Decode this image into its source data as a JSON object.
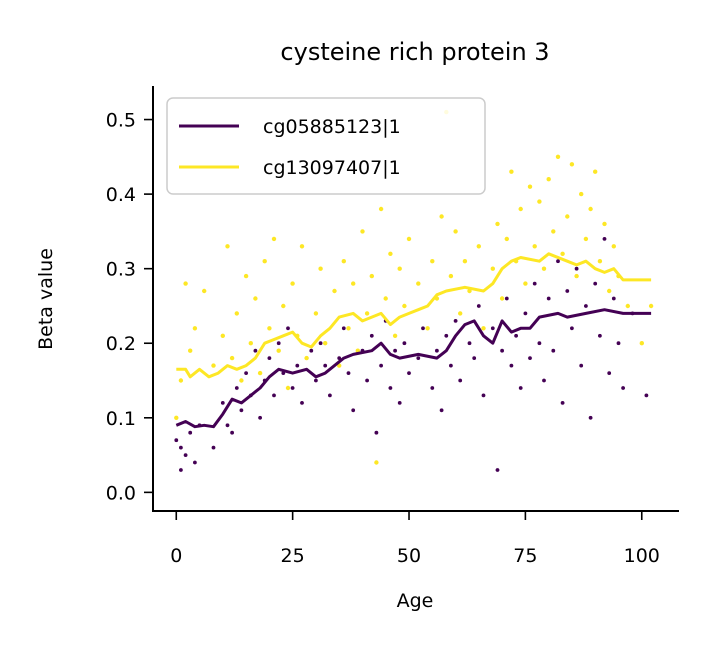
{
  "chart_data": {
    "type": "scatter",
    "title": "cysteine rich protein 3",
    "xlabel": "Age",
    "ylabel": "Beta value",
    "xlim": [
      -5,
      108
    ],
    "ylim": [
      -0.025,
      0.545
    ],
    "xticks": [
      0,
      25,
      50,
      75,
      100
    ],
    "yticks": [
      0.0,
      0.1,
      0.2,
      0.3,
      0.4,
      0.5
    ],
    "xtick_labels": [
      "0",
      "25",
      "50",
      "75",
      "100"
    ],
    "ytick_labels": [
      "0.0",
      "0.1",
      "0.2",
      "0.3",
      "0.4",
      "0.5"
    ],
    "grid": false,
    "legend_position": "top-left",
    "series": [
      {
        "name": "cg05885123|1",
        "color": "#440154",
        "trend": [
          [
            0,
            0.09
          ],
          [
            2,
            0.095
          ],
          [
            4,
            0.088
          ],
          [
            6,
            0.09
          ],
          [
            8,
            0.088
          ],
          [
            10,
            0.105
          ],
          [
            12,
            0.125
          ],
          [
            14,
            0.12
          ],
          [
            16,
            0.13
          ],
          [
            18,
            0.14
          ],
          [
            20,
            0.155
          ],
          [
            22,
            0.165
          ],
          [
            25,
            0.16
          ],
          [
            28,
            0.165
          ],
          [
            30,
            0.155
          ],
          [
            32,
            0.16
          ],
          [
            34,
            0.17
          ],
          [
            36,
            0.18
          ],
          [
            38,
            0.185
          ],
          [
            42,
            0.19
          ],
          [
            44,
            0.2
          ],
          [
            46,
            0.185
          ],
          [
            48,
            0.18
          ],
          [
            52,
            0.185
          ],
          [
            56,
            0.18
          ],
          [
            58,
            0.19
          ],
          [
            60,
            0.21
          ],
          [
            62,
            0.225
          ],
          [
            64,
            0.23
          ],
          [
            66,
            0.21
          ],
          [
            68,
            0.2
          ],
          [
            70,
            0.23
          ],
          [
            72,
            0.215
          ],
          [
            74,
            0.22
          ],
          [
            76,
            0.22
          ],
          [
            78,
            0.235
          ],
          [
            82,
            0.24
          ],
          [
            84,
            0.235
          ],
          [
            88,
            0.24
          ],
          [
            92,
            0.245
          ],
          [
            96,
            0.24
          ],
          [
            102,
            0.24
          ]
        ],
        "points": [
          [
            0,
            0.07
          ],
          [
            1,
            0.03
          ],
          [
            1,
            0.06
          ],
          [
            2,
            0.05
          ],
          [
            3,
            0.08
          ],
          [
            4,
            0.04
          ],
          [
            5,
            0.09
          ],
          [
            8,
            0.06
          ],
          [
            10,
            0.12
          ],
          [
            11,
            0.09
          ],
          [
            12,
            0.08
          ],
          [
            13,
            0.14
          ],
          [
            14,
            0.11
          ],
          [
            15,
            0.16
          ],
          [
            16,
            0.13
          ],
          [
            17,
            0.19
          ],
          [
            18,
            0.1
          ],
          [
            19,
            0.15
          ],
          [
            20,
            0.18
          ],
          [
            21,
            0.13
          ],
          [
            22,
            0.2
          ],
          [
            23,
            0.16
          ],
          [
            24,
            0.22
          ],
          [
            25,
            0.14
          ],
          [
            26,
            0.17
          ],
          [
            27,
            0.12
          ],
          [
            29,
            0.19
          ],
          [
            30,
            0.15
          ],
          [
            31,
            0.2
          ],
          [
            32,
            0.17
          ],
          [
            33,
            0.13
          ],
          [
            35,
            0.18
          ],
          [
            36,
            0.22
          ],
          [
            37,
            0.16
          ],
          [
            38,
            0.11
          ],
          [
            40,
            0.19
          ],
          [
            41,
            0.15
          ],
          [
            42,
            0.21
          ],
          [
            43,
            0.08
          ],
          [
            44,
            0.17
          ],
          [
            45,
            0.23
          ],
          [
            46,
            0.14
          ],
          [
            47,
            0.19
          ],
          [
            48,
            0.12
          ],
          [
            49,
            0.2
          ],
          [
            50,
            0.16
          ],
          [
            52,
            0.18
          ],
          [
            53,
            0.22
          ],
          [
            55,
            0.14
          ],
          [
            56,
            0.19
          ],
          [
            57,
            0.11
          ],
          [
            58,
            0.21
          ],
          [
            59,
            0.17
          ],
          [
            60,
            0.23
          ],
          [
            61,
            0.15
          ],
          [
            63,
            0.2
          ],
          [
            64,
            0.18
          ],
          [
            65,
            0.25
          ],
          [
            66,
            0.13
          ],
          [
            68,
            0.22
          ],
          [
            69,
            0.03
          ],
          [
            70,
            0.19
          ],
          [
            71,
            0.26
          ],
          [
            72,
            0.17
          ],
          [
            73,
            0.21
          ],
          [
            74,
            0.14
          ],
          [
            75,
            0.24
          ],
          [
            76,
            0.18
          ],
          [
            77,
            0.28
          ],
          [
            78,
            0.2
          ],
          [
            79,
            0.15
          ],
          [
            80,
            0.26
          ],
          [
            81,
            0.19
          ],
          [
            82,
            0.31
          ],
          [
            83,
            0.12
          ],
          [
            84,
            0.27
          ],
          [
            85,
            0.22
          ],
          [
            86,
            0.3
          ],
          [
            87,
            0.17
          ],
          [
            88,
            0.25
          ],
          [
            89,
            0.1
          ],
          [
            90,
            0.28
          ],
          [
            91,
            0.21
          ],
          [
            92,
            0.34
          ],
          [
            93,
            0.16
          ],
          [
            94,
            0.26
          ],
          [
            95,
            0.2
          ],
          [
            96,
            0.14
          ],
          [
            98,
            0.24
          ],
          [
            101,
            0.13
          ]
        ]
      },
      {
        "name": "cg13097407|1",
        "color": "#fde725",
        "trend": [
          [
            0,
            0.165
          ],
          [
            2,
            0.165
          ],
          [
            3,
            0.155
          ],
          [
            5,
            0.165
          ],
          [
            7,
            0.155
          ],
          [
            9,
            0.16
          ],
          [
            11,
            0.17
          ],
          [
            13,
            0.165
          ],
          [
            15,
            0.17
          ],
          [
            17,
            0.18
          ],
          [
            19,
            0.2
          ],
          [
            21,
            0.205
          ],
          [
            23,
            0.21
          ],
          [
            25,
            0.215
          ],
          [
            27,
            0.2
          ],
          [
            29,
            0.195
          ],
          [
            31,
            0.21
          ],
          [
            33,
            0.22
          ],
          [
            35,
            0.235
          ],
          [
            38,
            0.24
          ],
          [
            40,
            0.23
          ],
          [
            42,
            0.235
          ],
          [
            44,
            0.24
          ],
          [
            46,
            0.225
          ],
          [
            48,
            0.235
          ],
          [
            50,
            0.24
          ],
          [
            52,
            0.245
          ],
          [
            54,
            0.25
          ],
          [
            56,
            0.265
          ],
          [
            58,
            0.27
          ],
          [
            62,
            0.275
          ],
          [
            66,
            0.27
          ],
          [
            68,
            0.28
          ],
          [
            70,
            0.3
          ],
          [
            72,
            0.31
          ],
          [
            74,
            0.315
          ],
          [
            78,
            0.31
          ],
          [
            80,
            0.32
          ],
          [
            84,
            0.31
          ],
          [
            86,
            0.305
          ],
          [
            88,
            0.31
          ],
          [
            90,
            0.3
          ],
          [
            92,
            0.295
          ],
          [
            94,
            0.3
          ],
          [
            96,
            0.285
          ],
          [
            102,
            0.285
          ]
        ],
        "points": [
          [
            0,
            0.1
          ],
          [
            1,
            0.15
          ],
          [
            2,
            0.28
          ],
          [
            3,
            0.19
          ],
          [
            4,
            0.22
          ],
          [
            6,
            0.27
          ],
          [
            8,
            0.17
          ],
          [
            10,
            0.21
          ],
          [
            11,
            0.33
          ],
          [
            12,
            0.18
          ],
          [
            13,
            0.24
          ],
          [
            14,
            0.15
          ],
          [
            15,
            0.29
          ],
          [
            16,
            0.2
          ],
          [
            17,
            0.26
          ],
          [
            18,
            0.16
          ],
          [
            19,
            0.31
          ],
          [
            20,
            0.22
          ],
          [
            21,
            0.34
          ],
          [
            22,
            0.19
          ],
          [
            23,
            0.25
          ],
          [
            24,
            0.14
          ],
          [
            25,
            0.28
          ],
          [
            26,
            0.21
          ],
          [
            27,
            0.33
          ],
          [
            28,
            0.18
          ],
          [
            30,
            0.24
          ],
          [
            31,
            0.3
          ],
          [
            32,
            0.2
          ],
          [
            34,
            0.27
          ],
          [
            35,
            0.17
          ],
          [
            36,
            0.31
          ],
          [
            37,
            0.22
          ],
          [
            38,
            0.28
          ],
          [
            39,
            0.19
          ],
          [
            40,
            0.35
          ],
          [
            41,
            0.24
          ],
          [
            42,
            0.29
          ],
          [
            43,
            0.04
          ],
          [
            44,
            0.38
          ],
          [
            45,
            0.26
          ],
          [
            46,
            0.32
          ],
          [
            47,
            0.21
          ],
          [
            48,
            0.3
          ],
          [
            49,
            0.25
          ],
          [
            50,
            0.34
          ],
          [
            52,
            0.28
          ],
          [
            54,
            0.22
          ],
          [
            55,
            0.31
          ],
          [
            56,
            0.26
          ],
          [
            57,
            0.37
          ],
          [
            58,
            0.51
          ],
          [
            59,
            0.29
          ],
          [
            60,
            0.35
          ],
          [
            61,
            0.24
          ],
          [
            62,
            0.31
          ],
          [
            63,
            0.27
          ],
          [
            65,
            0.33
          ],
          [
            66,
            0.22
          ],
          [
            68,
            0.3
          ],
          [
            69,
            0.36
          ],
          [
            70,
            0.26
          ],
          [
            71,
            0.34
          ],
          [
            72,
            0.43
          ],
          [
            73,
            0.31
          ],
          [
            74,
            0.38
          ],
          [
            75,
            0.28
          ],
          [
            76,
            0.41
          ],
          [
            77,
            0.33
          ],
          [
            78,
            0.39
          ],
          [
            79,
            0.3
          ],
          [
            80,
            0.42
          ],
          [
            81,
            0.35
          ],
          [
            82,
            0.45
          ],
          [
            83,
            0.32
          ],
          [
            84,
            0.37
          ],
          [
            85,
            0.44
          ],
          [
            86,
            0.29
          ],
          [
            87,
            0.4
          ],
          [
            88,
            0.34
          ],
          [
            89,
            0.38
          ],
          [
            90,
            0.43
          ],
          [
            91,
            0.31
          ],
          [
            92,
            0.36
          ],
          [
            93,
            0.27
          ],
          [
            94,
            0.33
          ],
          [
            95,
            0.29
          ],
          [
            97,
            0.25
          ],
          [
            100,
            0.2
          ],
          [
            102,
            0.25
          ]
        ]
      }
    ]
  }
}
